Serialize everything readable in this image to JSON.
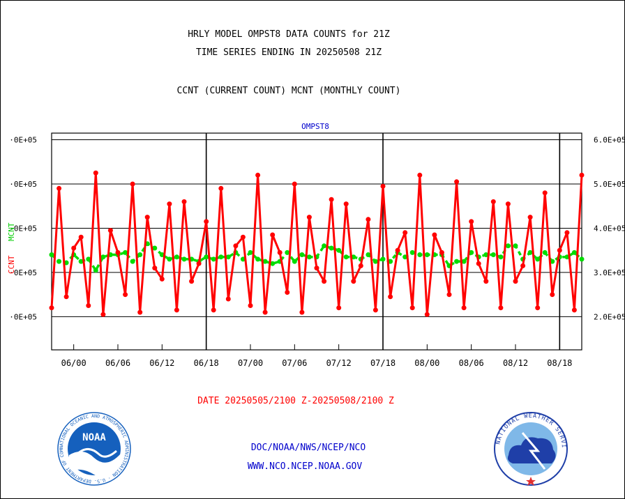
{
  "chart_data": {
    "type": "line",
    "title_lines": [
      "HRLY MODEL OMPST8 DATA COUNTS for 21Z",
      "TIME SERIES ENDING IN 20250508 21Z"
    ],
    "subtitle": "CCNT (CURRENT COUNT) MCNT (MONTHLY COUNT)",
    "panel_label": "OMPST8",
    "ylabel_ccnt": "CCNT",
    "ylabel_mcnt": "MCNT",
    "date_range_label": "DATE 20250505/2100 Z-20250508/2100 Z",
    "x_tick_labels": [
      "06/00",
      "06/06",
      "06/12",
      "06/18",
      "07/00",
      "07/06",
      "07/12",
      "07/18",
      "08/00",
      "08/06",
      "08/12",
      "08/18"
    ],
    "x_tick_hours": [
      3,
      9,
      15,
      21,
      27,
      33,
      39,
      45,
      51,
      57,
      63,
      69
    ],
    "x_range_hours": [
      0,
      72
    ],
    "day_boundary_hours": [
      21,
      45,
      69
    ],
    "left_tick_labels": [
      "·0E+05",
      "·0E+05",
      "·0E+05",
      "·0E+05",
      "·0E+05"
    ],
    "right_tick_labels": [
      "6.0E+05",
      "5.0E+05",
      "4.0E+05",
      "3.0E+05",
      "2.0E+05"
    ],
    "tick_values": [
      600000,
      500000,
      400000,
      300000,
      200000
    ],
    "ylim": [
      125000,
      615000
    ],
    "grid": "horizontal",
    "series": [
      {
        "name": "CCNT",
        "color": "#ff0000",
        "values": [
          220000,
          490000,
          245000,
          355000,
          380000,
          225000,
          525000,
          205000,
          395000,
          345000,
          250000,
          500000,
          210000,
          425000,
          310000,
          285000,
          455000,
          215000,
          460000,
          280000,
          320000,
          415000,
          215000,
          490000,
          240000,
          360000,
          380000,
          225000,
          520000,
          210000,
          385000,
          345000,
          255000,
          500000,
          210000,
          425000,
          310000,
          280000,
          465000,
          220000,
          455000,
          280000,
          315000,
          420000,
          215000,
          495000,
          245000,
          350000,
          390000,
          220000,
          520000,
          205000,
          385000,
          345000,
          250000,
          505000,
          220000,
          415000,
          320000,
          280000,
          460000,
          220000,
          455000,
          280000,
          315000,
          425000,
          220000,
          480000,
          250000,
          350000,
          390000,
          215000,
          520000
        ]
      },
      {
        "name": "MCNT",
        "color": "#00dd00",
        "values": [
          340000,
          325000,
          322000,
          340000,
          325000,
          330000,
          305000,
          335000,
          340000,
          340000,
          345000,
          325000,
          340000,
          365000,
          355000,
          340000,
          330000,
          335000,
          330000,
          330000,
          325000,
          335000,
          330000,
          335000,
          335000,
          345000,
          330000,
          345000,
          330000,
          325000,
          320000,
          325000,
          345000,
          325000,
          340000,
          335000,
          335000,
          360000,
          355000,
          350000,
          335000,
          335000,
          330000,
          340000,
          325000,
          330000,
          325000,
          345000,
          335000,
          345000,
          340000,
          340000,
          340000,
          340000,
          315000,
          325000,
          325000,
          345000,
          335000,
          340000,
          340000,
          335000,
          360000,
          360000,
          330000,
          345000,
          330000,
          345000,
          325000,
          335000,
          335000,
          345000,
          330000
        ]
      }
    ]
  },
  "footer": {
    "credit": "DOC/NOAA/NWS/NCEP/NCO",
    "website": "WWW.NCO.NCEP.NOAA.GOV"
  },
  "logos": {
    "noaa_center": "NOAA",
    "noaa_ring": "NATIONAL OCEANIC AND ATMOSPHERIC ADMINISTRATION · U.S. DEPARTMENT OF COMMERCE ·",
    "nws_ring": "NATIONAL WEATHER SERVICE"
  },
  "colors": {
    "title": "#000000",
    "panel_label": "#0000cc",
    "date_label": "#ff0000",
    "footer_text": "#0000cc",
    "noaa_blue": "#1560bd",
    "nws_blue": "#1f3fa8"
  }
}
